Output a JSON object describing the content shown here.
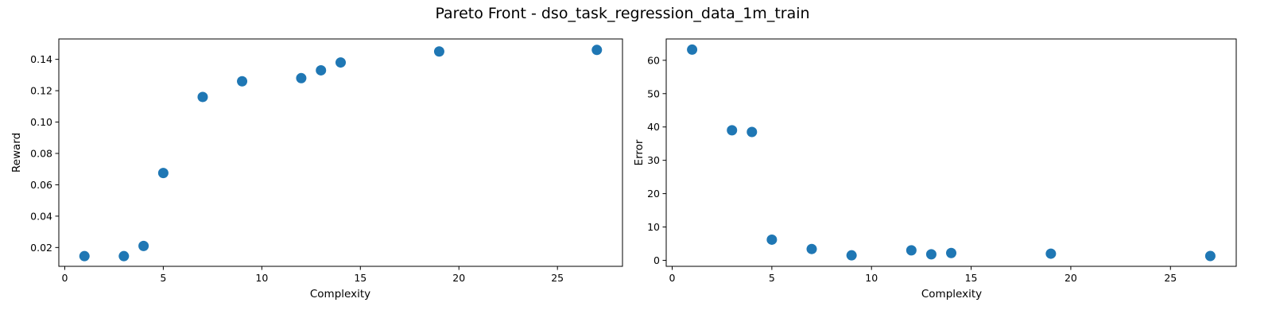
{
  "figure": {
    "title": "Pareto Front - dso_task_regression_data_1m_train",
    "marker_color": "#1f77b4"
  },
  "chart_data": [
    {
      "type": "scatter",
      "xlabel": "Complexity",
      "ylabel": "Reward",
      "xlim": [
        -0.3,
        28.3
      ],
      "ylim": [
        0.008,
        0.153
      ],
      "xticks": [
        0,
        5,
        10,
        15,
        20,
        25
      ],
      "yticks": [
        0.02,
        0.04,
        0.06,
        0.08,
        0.1,
        0.12,
        0.14
      ],
      "ytick_labels": [
        "0.02",
        "0.04",
        "0.06",
        "0.08",
        "0.10",
        "0.12",
        "0.14"
      ],
      "grid": false,
      "x": [
        1,
        3,
        4,
        5,
        7,
        9,
        12,
        13,
        14,
        19,
        27
      ],
      "y": [
        0.0145,
        0.0145,
        0.021,
        0.0675,
        0.116,
        0.126,
        0.128,
        0.133,
        0.138,
        0.145,
        0.146
      ]
    },
    {
      "type": "scatter",
      "xlabel": "Complexity",
      "ylabel": "Error",
      "xlim": [
        -0.3,
        28.3
      ],
      "ylim": [
        -1.8,
        66.4
      ],
      "xticks": [
        0,
        5,
        10,
        15,
        20,
        25
      ],
      "yticks": [
        0,
        10,
        20,
        30,
        40,
        50,
        60
      ],
      "ytick_labels": [
        "0",
        "10",
        "20",
        "30",
        "40",
        "50",
        "60"
      ],
      "grid": false,
      "x": [
        1,
        3,
        4,
        5,
        7,
        9,
        12,
        13,
        14,
        19,
        27
      ],
      "y": [
        63.2,
        39.0,
        38.5,
        6.2,
        3.4,
        1.5,
        3.0,
        1.8,
        2.2,
        2.0,
        1.3
      ]
    }
  ]
}
